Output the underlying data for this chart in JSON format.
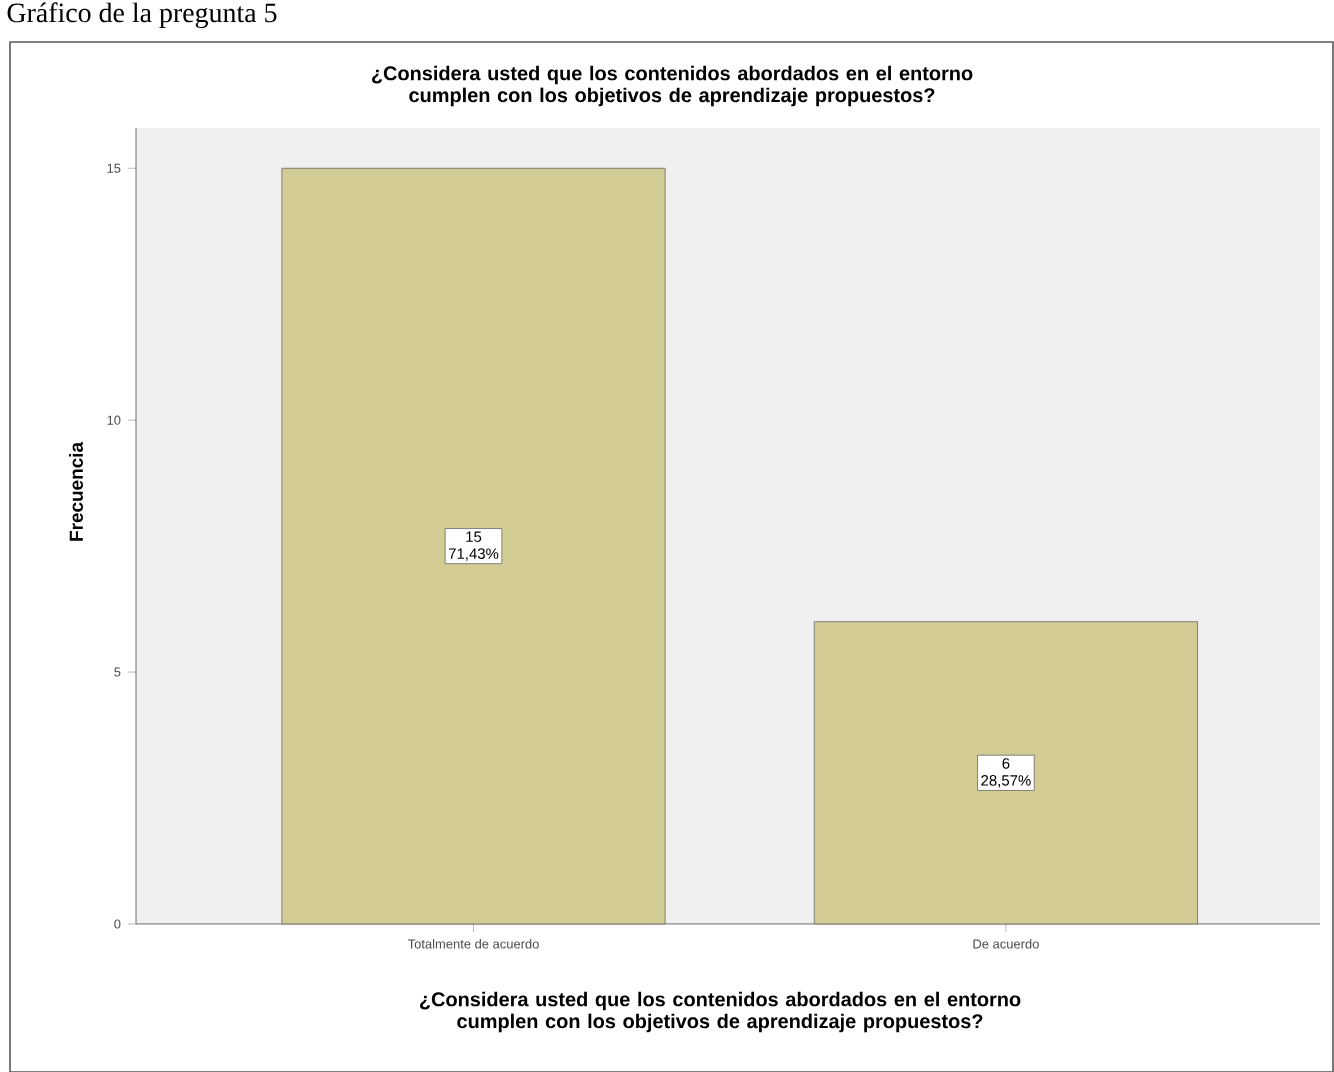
{
  "chart_data": {
    "type": "bar",
    "title": "¿Considera usted que los contenidos abordados en el entorno cumplen con los objetivos de aprendizaje propuestos?",
    "xlabel": "¿Considera usted que los contenidos abordados en el entorno cumplen con los objetivos de aprendizaje propuestos?",
    "ylabel": "Frecuencia",
    "annotations": [
      "Gráfico de la pregunta 5",
      {
        "text": "71,43%",
        "x": "Totalmente de acuerdo",
        "y": 7.5
      },
      {
        "text": "28,57%",
        "x": "De acuerdo",
        "y": 3
      }
    ],
    "categories": [
      "Totalmente de acuerdo",
      "De acuerdo"
    ],
    "values": [
      15,
      6
    ],
    "color": "#d3cd95",
    "value_labels": [
      "15",
      "6"
    ],
    "ylim": [
      0,
      15.8
    ],
    "yticks": [
      0,
      5,
      10,
      15
    ],
    "grid": false
  }
}
